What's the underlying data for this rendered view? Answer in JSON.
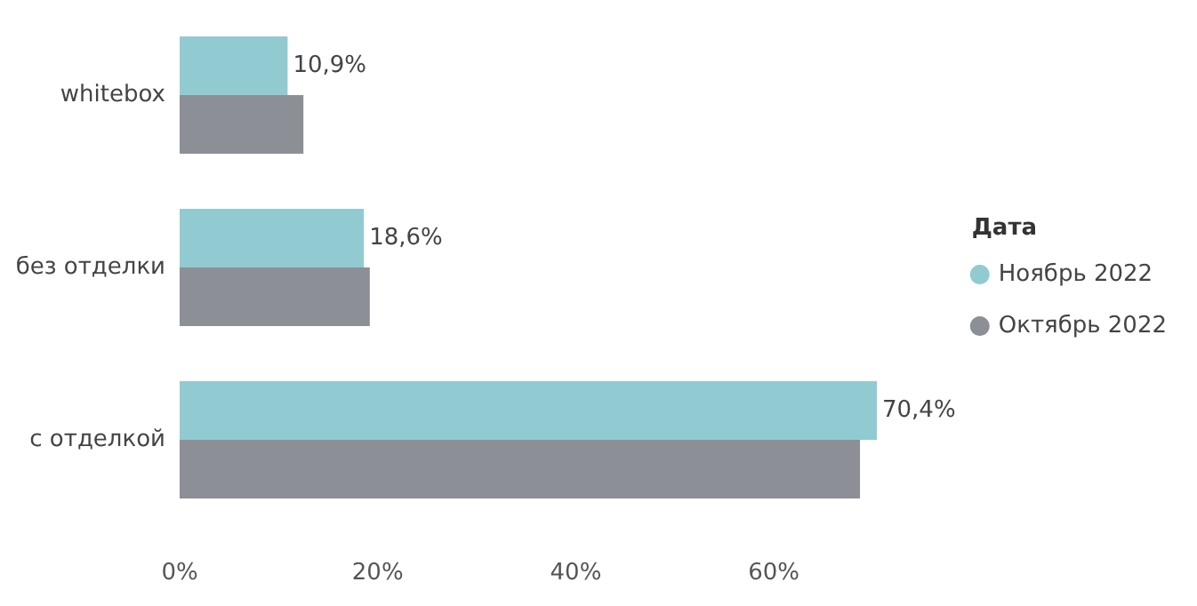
{
  "chart_data": {
    "type": "bar",
    "orientation": "horizontal",
    "categories": [
      "whitebox",
      "без отделки",
      "с отделкой"
    ],
    "series": [
      {
        "name": "Ноябрь 2022",
        "color": "#92cad1",
        "values": [
          10.9,
          18.6,
          70.4
        ],
        "value_labels": [
          "10,9%",
          "18,6%",
          "70,4%"
        ]
      },
      {
        "name": "Октябрь 2022",
        "color": "#8c9096",
        "values": [
          12.5,
          19.2,
          68.7
        ]
      }
    ],
    "xlim": [
      0,
      70.4
    ],
    "xticks": [
      {
        "value": 0,
        "label": "0%"
      },
      {
        "value": 20,
        "label": "20%"
      },
      {
        "value": 40,
        "label": "40%"
      },
      {
        "value": 60,
        "label": "60%"
      }
    ],
    "legend": "right",
    "legend_title": "Дата",
    "grid": false
  }
}
